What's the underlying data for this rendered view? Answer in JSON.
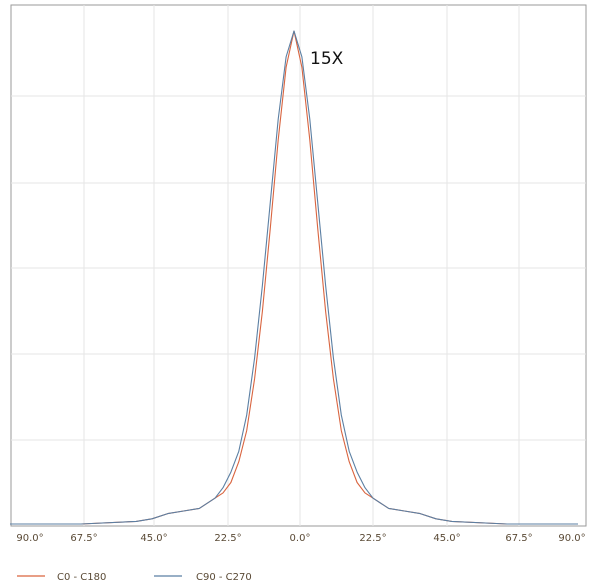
{
  "chart_data": {
    "type": "line",
    "title": "",
    "xlabel": "",
    "ylabel": "",
    "annotation": "15X",
    "x_ticks": [
      "90.0°",
      "67.5°",
      "45.0°",
      "22.5°",
      "0.0°",
      "22.5°",
      "45.0°",
      "67.5°",
      "90.0°"
    ],
    "xlim": [
      -90,
      90
    ],
    "ylim": [
      0,
      100
    ],
    "grid": true,
    "legend_position": "bottom-left",
    "series": [
      {
        "name": "C0 - C180",
        "color": "#d9643f",
        "x": [
          -90,
          -67.5,
          -50,
          -45,
          -40,
          -35,
          -30,
          -25,
          -22.5,
          -20,
          -17.5,
          -15,
          -12.5,
          -10,
          -7.5,
          -5,
          -2.5,
          0,
          2.5,
          5,
          7.5,
          10,
          12.5,
          15,
          17.5,
          20,
          22.5,
          25,
          30,
          35,
          40,
          45,
          50,
          67.5,
          90
        ],
        "y": [
          0,
          0,
          0.5,
          1,
          2,
          2.5,
          3,
          5,
          6,
          8,
          12,
          18,
          28,
          41,
          57,
          74,
          88,
          95,
          88,
          74,
          57,
          41,
          28,
          18,
          12,
          8,
          6,
          5,
          3,
          2.5,
          2,
          1,
          0.5,
          0,
          0
        ]
      },
      {
        "name": "C90 - C270",
        "color": "#5b7fa3",
        "x": [
          -90,
          -67.5,
          -50,
          -45,
          -40,
          -35,
          -30,
          -25,
          -22.5,
          -20,
          -17.5,
          -15,
          -12.5,
          -10,
          -7.5,
          -5,
          -2.5,
          0,
          2.5,
          5,
          7.5,
          10,
          12.5,
          15,
          17.5,
          20,
          22.5,
          25,
          30,
          35,
          40,
          45,
          50,
          67.5,
          90
        ],
        "y": [
          0,
          0,
          0.5,
          1,
          2,
          2.5,
          3,
          5,
          7,
          10,
          14,
          21,
          32,
          46,
          62,
          78,
          90,
          95,
          90,
          78,
          62,
          46,
          32,
          21,
          14,
          10,
          7,
          5,
          3,
          2.5,
          2,
          1,
          0.5,
          0,
          0
        ]
      }
    ]
  }
}
